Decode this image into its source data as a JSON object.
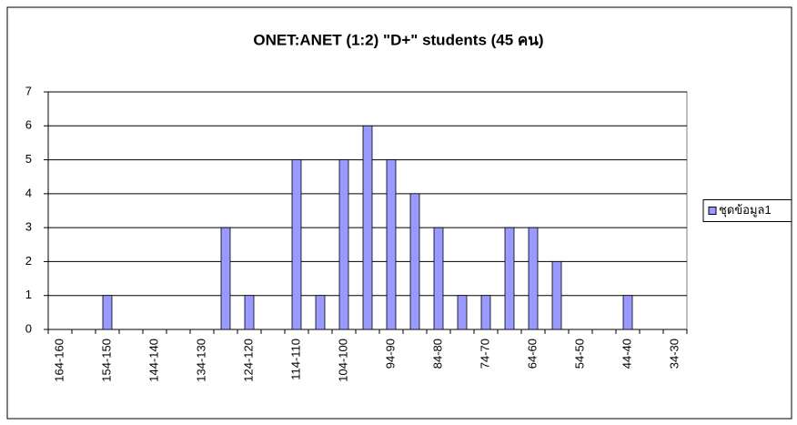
{
  "chart_data": {
    "type": "bar",
    "title": "ONET:ANET (1:2) \"D+\" students (45 คน)",
    "categories": [
      "164-160",
      null,
      "154-150",
      null,
      "144-140",
      null,
      "134-130",
      null,
      "124-120",
      null,
      "114-110",
      null,
      "104-100",
      null,
      "94-90",
      null,
      "84-80",
      null,
      "74-70",
      null,
      "64-60",
      null,
      "54-50",
      null,
      "44-40",
      null,
      "34-30"
    ],
    "series": [
      {
        "name": "ชุดข้อมูล1",
        "color": "#9999ff",
        "values": [
          0,
          0,
          1,
          0,
          0,
          0,
          0,
          3,
          1,
          0,
          5,
          1,
          5,
          6,
          5,
          4,
          3,
          1,
          1,
          3,
          3,
          2,
          0,
          0,
          1,
          0,
          0
        ]
      }
    ],
    "ylim": [
      0,
      7
    ],
    "yticks": [
      0,
      1,
      2,
      3,
      4,
      5,
      6,
      7
    ],
    "grid": true,
    "legend": "right"
  }
}
